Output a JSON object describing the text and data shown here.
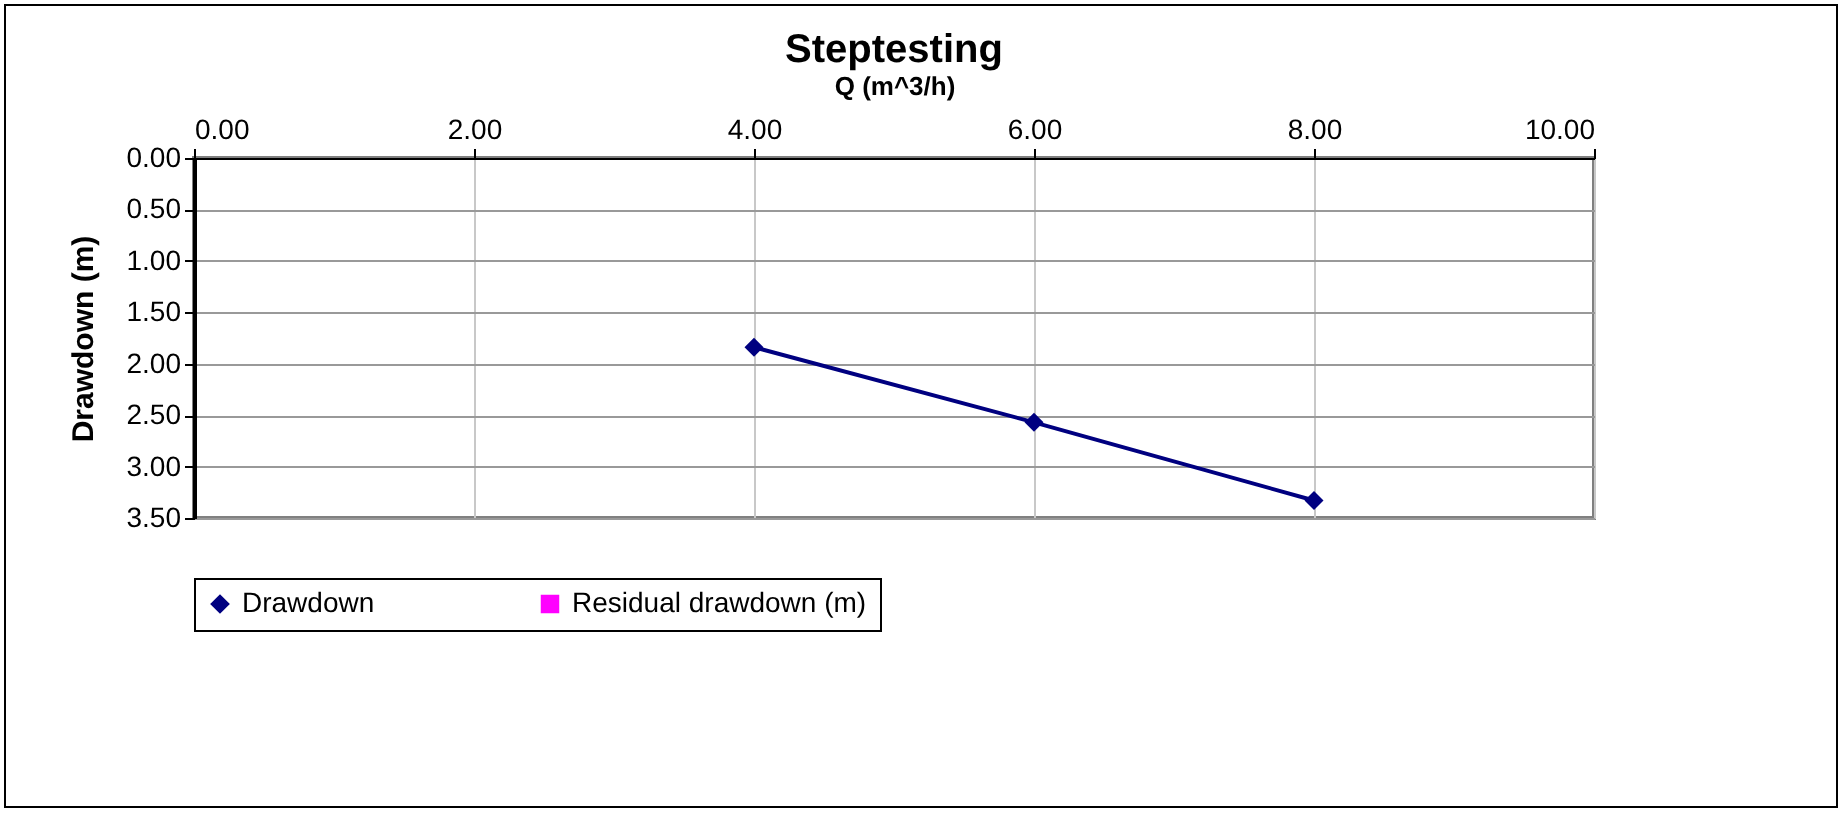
{
  "chart_data": {
    "type": "line",
    "title": "Steptesting",
    "xlabel": "Q (m^3/h)",
    "ylabel": "Drawdown (m)",
    "x": [
      4,
      6,
      8
    ],
    "series": [
      {
        "name": "Drawdown",
        "color": "#000080",
        "marker": "diamond",
        "values": [
          1.84,
          2.57,
          3.33
        ]
      },
      {
        "name": "Residual drawdown (m)",
        "color": "#ff00ff",
        "marker": "square",
        "values": [
          null,
          null,
          null
        ]
      }
    ],
    "xlim": [
      0,
      10
    ],
    "xticks": [
      {
        "value": 0,
        "label": "0.00"
      },
      {
        "value": 2,
        "label": "2.00"
      },
      {
        "value": 4,
        "label": "4.00"
      },
      {
        "value": 6,
        "label": "6.00"
      },
      {
        "value": 8,
        "label": "8.00"
      },
      {
        "value": 10,
        "label": "10.00"
      }
    ],
    "ylim": [
      3.5,
      0
    ],
    "yticks": [
      {
        "value": 0,
        "label": "0.00"
      },
      {
        "value": 0.5,
        "label": "0.50"
      },
      {
        "value": 1,
        "label": "1.00"
      },
      {
        "value": 1.5,
        "label": "1.50"
      },
      {
        "value": 2,
        "label": "2.00"
      },
      {
        "value": 2.5,
        "label": "2.50"
      },
      {
        "value": 3,
        "label": "3.00"
      },
      {
        "value": 3.5,
        "label": "3.50"
      }
    ],
    "grid": true,
    "legend": "bottom"
  }
}
